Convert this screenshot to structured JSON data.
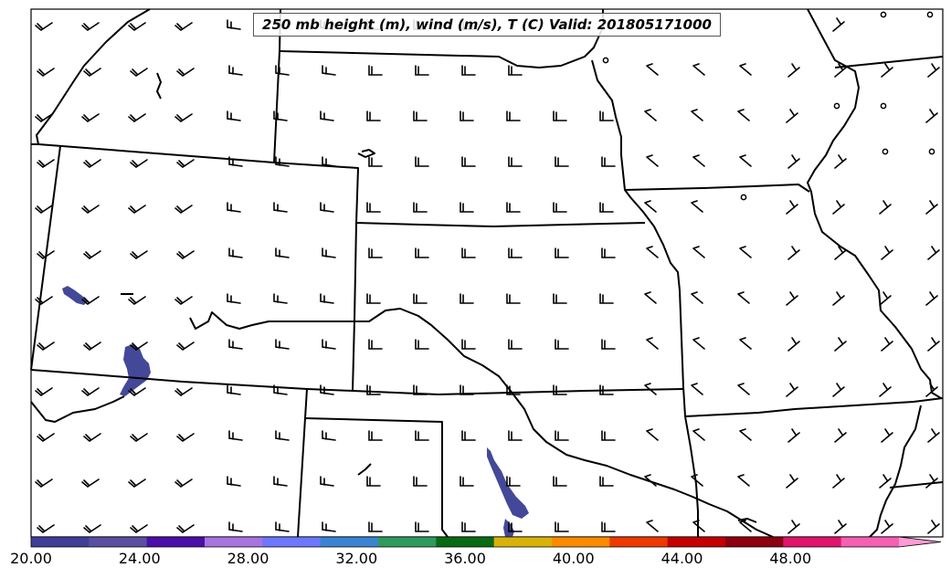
{
  "title": "250 mb height (m), wind (m/s), T (C) Valid: 201805171000",
  "colorbar": {
    "min": 20.0,
    "max": 52.0,
    "tick_labels": [
      "20.00",
      "24.00",
      "28.00",
      "32.00",
      "36.00",
      "40.00",
      "44.00",
      "48.00"
    ],
    "colors": [
      "#3f3f98",
      "#5a4fa0",
      "#4a0fa8",
      "#a874e0",
      "#6e78ff",
      "#3a84d2",
      "#2f9a5e",
      "#0a6a14",
      "#d8b20a",
      "#ff8a00",
      "#ee3a00",
      "#c40000",
      "#8c0010",
      "#e0156e",
      "#f560b4"
    ],
    "extend_color": "#ff9ad6"
  },
  "map_colors": {
    "temperature_patch": "#434998",
    "border": "#000000"
  },
  "wind_barb_icon": "wind-barb-icon",
  "station_icon": "missing-wind-circle-icon"
}
